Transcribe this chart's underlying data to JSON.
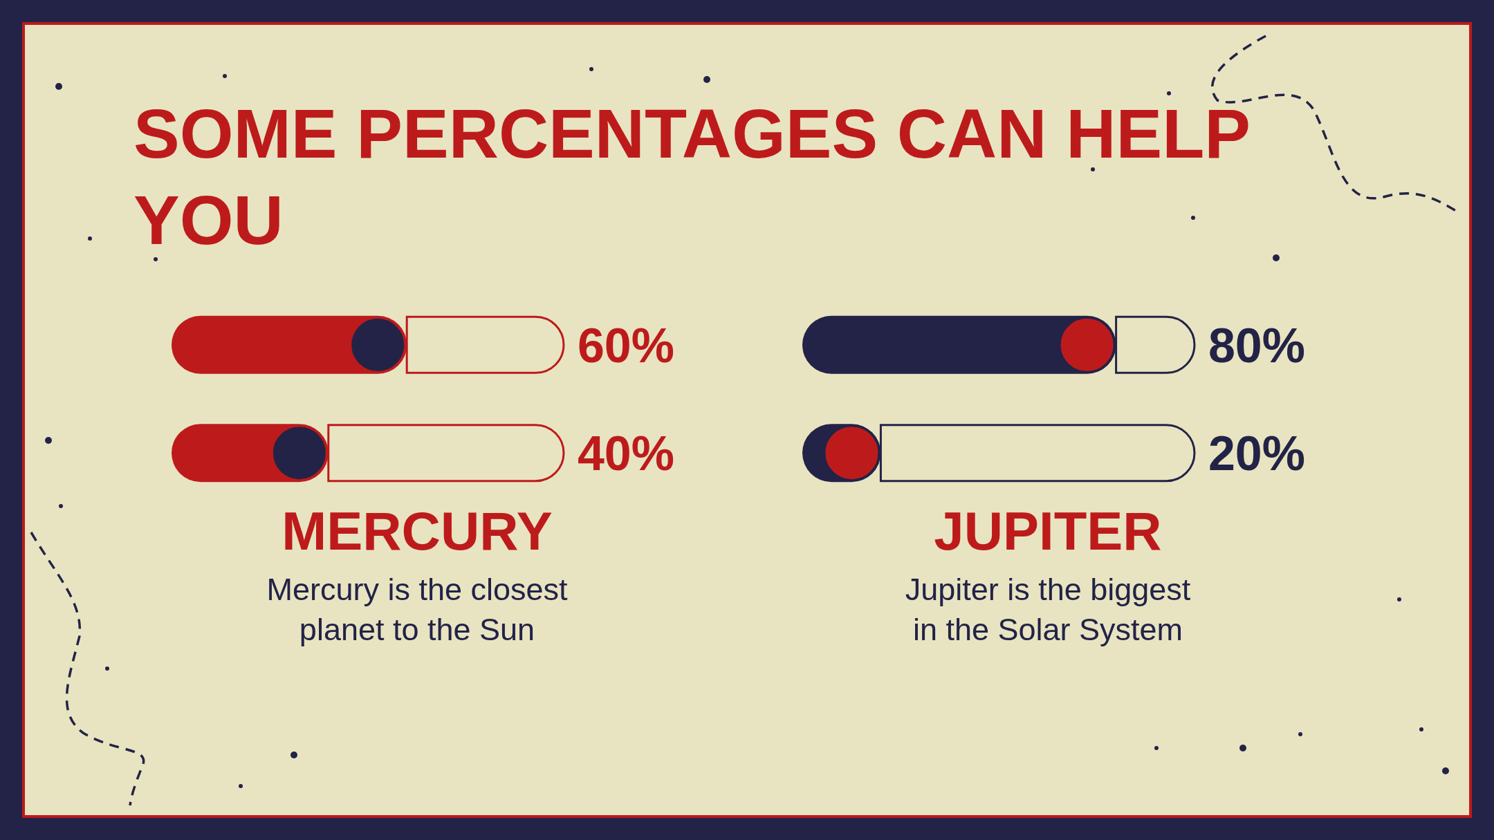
{
  "chart_data": [
    {
      "type": "bar",
      "title": "SOME PERCENTAGES CAN HELP YOU",
      "orientation": "horizontal",
      "stacked": true,
      "categories": [
        null,
        null
      ],
      "xlim": [
        0,
        100
      ],
      "tick_labels": false,
      "xlabel": "MERCURY",
      "annotations": [
        "Mercury is the closest planet to the Sun"
      ],
      "series": [
        {
          "color": "#bd1b1b",
          "values": [
            60,
            40
          ],
          "value_labels": [
            "60%",
            "40%"
          ]
        },
        {
          "color": "#e8e4c2",
          "values": [
            40,
            60
          ]
        }
      ]
    },
    {
      "type": "bar",
      "orientation": "horizontal",
      "stacked": true,
      "categories": [
        null,
        null
      ],
      "xlim": [
        0,
        100
      ],
      "tick_labels": false,
      "xlabel": "JUPITER",
      "annotations": [
        "Jupiter is the biggest in the Solar System"
      ],
      "series": [
        {
          "color": "#232347",
          "values": [
            80,
            20
          ],
          "value_labels": [
            "80%",
            "20%"
          ]
        },
        {
          "color": "#e8e4c2",
          "values": [
            20,
            80
          ]
        }
      ]
    }
  ]
}
